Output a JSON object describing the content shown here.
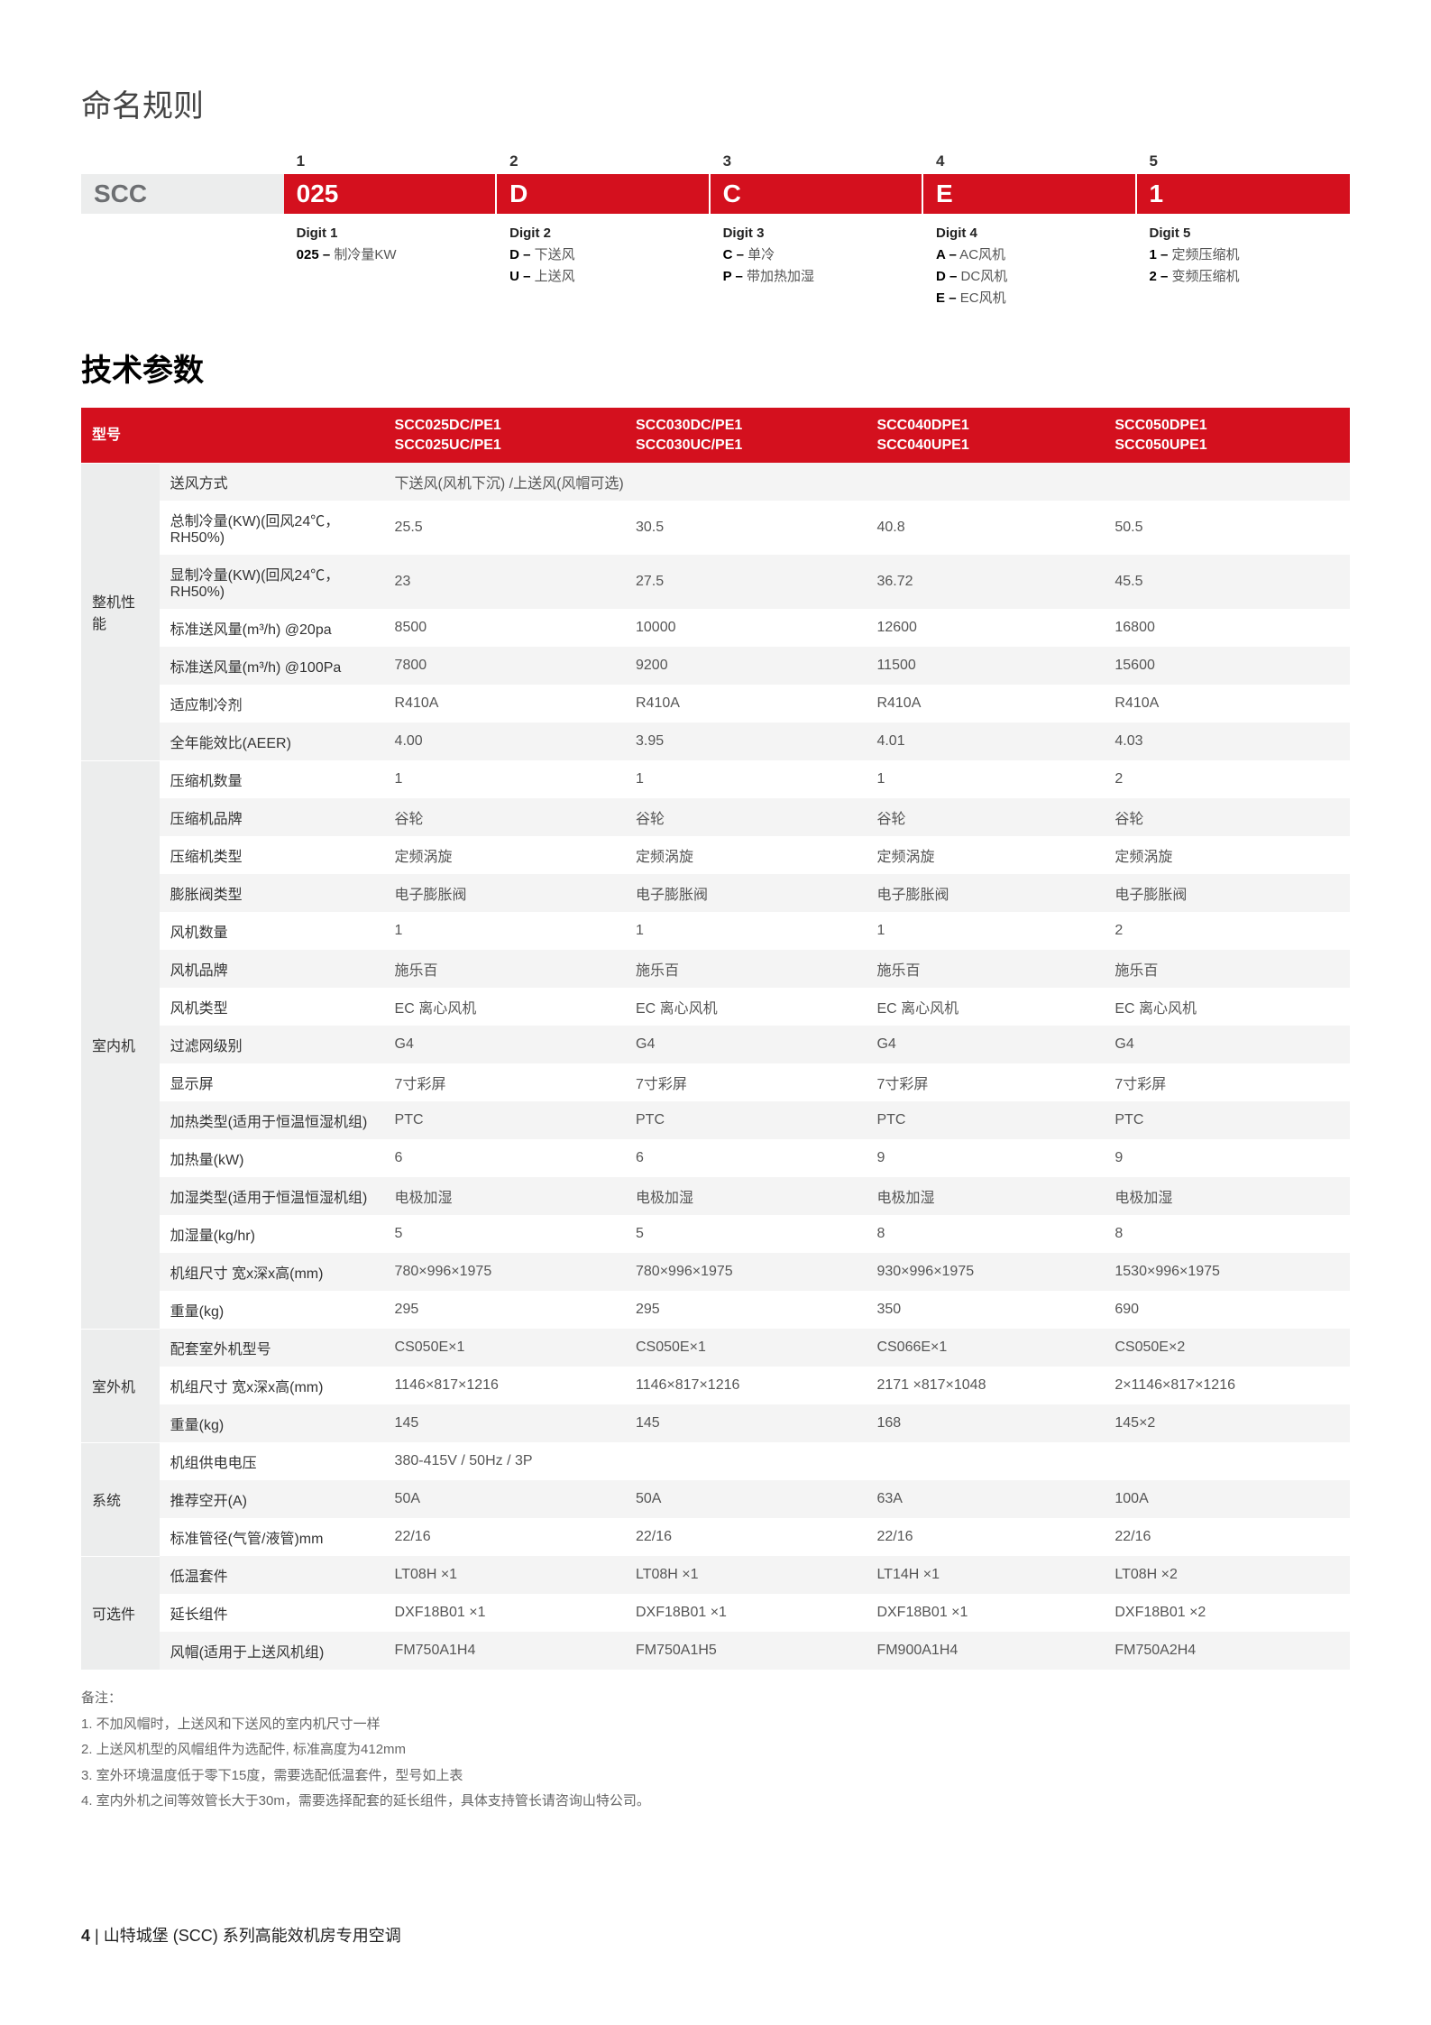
{
  "colors": {
    "accent": "#d4101e",
    "band_gray_bg": "#eceded",
    "row_alt_bg": "#f4f4f4",
    "text": "#333333",
    "muted": "#666666"
  },
  "naming": {
    "title": "命名规则",
    "prefix_band": "SCC",
    "cols": [
      {
        "num": "1",
        "band": "025",
        "digit_label": "Digit 1",
        "lines": [
          {
            "bold": "025 –",
            "rest": " 制冷量KW"
          }
        ]
      },
      {
        "num": "2",
        "band": "D",
        "digit_label": "Digit 2",
        "lines": [
          {
            "bold": "D –",
            "rest": " 下送风"
          },
          {
            "bold": "U –",
            "rest": " 上送风"
          }
        ]
      },
      {
        "num": "3",
        "band": "C",
        "digit_label": "Digit 3",
        "lines": [
          {
            "bold": "C –",
            "rest": " 单冷"
          },
          {
            "bold": "P –",
            "rest": " 带加热加湿"
          }
        ]
      },
      {
        "num": "4",
        "band": "E",
        "digit_label": "Digit 4",
        "lines": [
          {
            "bold": "A –",
            "rest": " AC风机"
          },
          {
            "bold": "D –",
            "rest": " DC风机"
          },
          {
            "bold": "E –",
            "rest": " EC风机"
          }
        ]
      },
      {
        "num": "5",
        "band": "1",
        "digit_label": "Digit 5",
        "lines": [
          {
            "bold": "1 –",
            "rest": " 定频压缩机"
          },
          {
            "bold": "2 –",
            "rest": " 变频压缩机"
          }
        ]
      }
    ]
  },
  "spec": {
    "title": "技术参数",
    "header": {
      "model_label": "型号",
      "models": [
        "SCC025DC/PE1\nSCC025UC/PE1",
        "SCC030DC/PE1\nSCC030UC/PE1",
        "SCC040DPE1\nSCC040UPE1",
        "SCC050DPE1\nSCC050UPE1"
      ]
    },
    "groups": [
      {
        "cat": "整机性能",
        "rows": [
          {
            "label": "送风方式",
            "span": true,
            "value": "下送风(风机下沉) /上送风(风帽可选)"
          },
          {
            "label": "总制冷量(KW)(回风24℃，RH50%)",
            "vals": [
              "25.5",
              "30.5",
              "40.8",
              "50.5"
            ]
          },
          {
            "label": "显制冷量(KW)(回风24℃，RH50%)",
            "vals": [
              "23",
              "27.5",
              "36.72",
              "45.5"
            ]
          },
          {
            "label": "标准送风量(m³/h) @20pa",
            "vals": [
              "8500",
              "10000",
              "12600",
              "16800"
            ]
          },
          {
            "label": "标准送风量(m³/h) @100Pa",
            "vals": [
              "7800",
              "9200",
              "11500",
              "15600"
            ]
          },
          {
            "label": "适应制冷剂",
            "vals": [
              "R410A",
              "R410A",
              "R410A",
              "R410A"
            ]
          },
          {
            "label": "全年能效比(AEER)",
            "vals": [
              "4.00",
              "3.95",
              "4.01",
              "4.03"
            ]
          }
        ]
      },
      {
        "cat": "室内机",
        "rows": [
          {
            "label": "压缩机数量",
            "vals": [
              "1",
              "1",
              "1",
              "2"
            ]
          },
          {
            "label": "压缩机品牌",
            "vals": [
              "谷轮",
              "谷轮",
              "谷轮",
              "谷轮"
            ]
          },
          {
            "label": "压缩机类型",
            "vals": [
              "定频涡旋",
              "定频涡旋",
              "定频涡旋",
              "定频涡旋"
            ]
          },
          {
            "label": "膨胀阀类型",
            "vals": [
              "电子膨胀阀",
              "电子膨胀阀",
              "电子膨胀阀",
              "电子膨胀阀"
            ]
          },
          {
            "label": "风机数量",
            "vals": [
              "1",
              "1",
              "1",
              "2"
            ]
          },
          {
            "label": "风机品牌",
            "vals": [
              "施乐百",
              "施乐百",
              "施乐百",
              "施乐百"
            ]
          },
          {
            "label": "风机类型",
            "vals": [
              "EC 离心风机",
              "EC 离心风机",
              "EC 离心风机",
              "EC 离心风机"
            ]
          },
          {
            "label": "过滤网级别",
            "vals": [
              "G4",
              "G4",
              "G4",
              "G4"
            ]
          },
          {
            "label": "显示屏",
            "vals": [
              "7寸彩屏",
              "7寸彩屏",
              "7寸彩屏",
              "7寸彩屏"
            ]
          },
          {
            "label": "加热类型(适用于恒温恒湿机组)",
            "vals": [
              "PTC",
              "PTC",
              "PTC",
              "PTC"
            ]
          },
          {
            "label": "加热量(kW)",
            "vals": [
              "6",
              "6",
              "9",
              "9"
            ]
          },
          {
            "label": "加湿类型(适用于恒温恒湿机组)",
            "vals": [
              "电极加湿",
              "电极加湿",
              "电极加湿",
              "电极加湿"
            ]
          },
          {
            "label": "加湿量(kg/hr)",
            "vals": [
              "5",
              "5",
              "8",
              "8"
            ]
          },
          {
            "label": "机组尺寸 宽x深x高(mm)",
            "vals": [
              "780×996×1975",
              "780×996×1975",
              "930×996×1975",
              "1530×996×1975"
            ]
          },
          {
            "label": "重量(kg)",
            "vals": [
              "295",
              "295",
              "350",
              "690"
            ]
          }
        ]
      },
      {
        "cat": "室外机",
        "rows": [
          {
            "label": "配套室外机型号",
            "vals": [
              "CS050E×1",
              "CS050E×1",
              "CS066E×1",
              "CS050E×2"
            ]
          },
          {
            "label": "机组尺寸 宽x深x高(mm)",
            "vals": [
              "1146×817×1216",
              "1146×817×1216",
              "2171 ×817×1048",
              "2×1146×817×1216"
            ]
          },
          {
            "label": "重量(kg)",
            "vals": [
              "145",
              "145",
              "168",
              "145×2"
            ]
          }
        ]
      },
      {
        "cat": "系统",
        "rows": [
          {
            "label": "机组供电电压",
            "span": true,
            "value": "380-415V / 50Hz / 3P"
          },
          {
            "label": "推荐空开(A)",
            "vals": [
              "50A",
              "50A",
              "63A",
              "100A"
            ]
          },
          {
            "label": "标准管径(气管/液管)mm",
            "vals": [
              "22/16",
              "22/16",
              "22/16",
              "22/16"
            ]
          }
        ]
      },
      {
        "cat": "可选件",
        "rows": [
          {
            "label": "低温套件",
            "vals": [
              "LT08H ×1",
              "LT08H ×1",
              "LT14H ×1",
              "LT08H ×2"
            ]
          },
          {
            "label": "延长组件",
            "vals": [
              "DXF18B01 ×1",
              "DXF18B01 ×1",
              "DXF18B01 ×1",
              "DXF18B01 ×2"
            ]
          },
          {
            "label": "风帽(适用于上送风机组)",
            "vals": [
              "FM750A1H4",
              "FM750A1H5",
              "FM900A1H4",
              "FM750A2H4"
            ]
          }
        ]
      }
    ]
  },
  "notes": {
    "heading": "备注：",
    "items": [
      "1. 不加风帽时，上送风和下送风的室内机尺寸一样",
      "2. 上送风机型的风帽组件为选配件, 标准高度为412mm",
      "3. 室外环境温度低于零下15度，需要选配低温套件，型号如上表",
      "4. 室内外机之间等效管长大于30m，需要选择配套的延长组件，具体支持管长请咨询山特公司。"
    ]
  },
  "footer": {
    "page": "4",
    "sep": " | ",
    "text": "山特城堡 (SCC) 系列高能效机房专用空调"
  }
}
